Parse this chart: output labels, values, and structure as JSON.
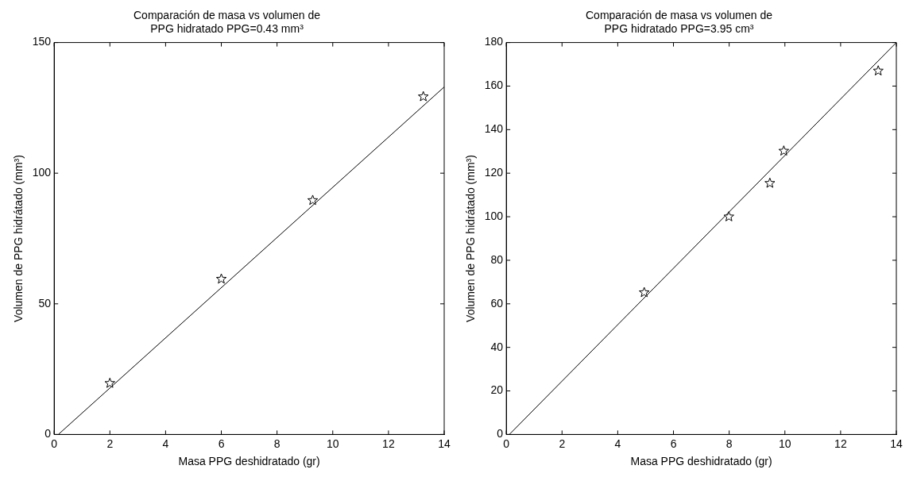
{
  "chart_data": [
    {
      "type": "scatter",
      "title": "Comparación de masa vs volumen de\nPPG hidratado PPG=0.43 mm³",
      "xlabel": "Masa PPG deshidratado (gr)",
      "ylabel": "Volumen de PPG hidrátado (mm³)",
      "xlim": [
        0,
        14
      ],
      "xticks": [
        0,
        2,
        4,
        6,
        8,
        10,
        12,
        14
      ],
      "ylim": [
        0,
        150
      ],
      "yticks": [
        0,
        50,
        100,
        150
      ],
      "grid": false,
      "legend": false,
      "series": [
        {
          "color": "#000000",
          "marker": "star",
          "x": [
            2,
            6,
            9.28,
            13.25
          ],
          "values": [
            19.6,
            59.5,
            89.6,
            129.3
          ]
        },
        {
          "type": "line",
          "color": "#000000",
          "marker": "none",
          "line_style": "solid",
          "x": [
            0.15,
            14
          ],
          "values": [
            0,
            133
          ]
        }
      ]
    },
    {
      "type": "scatter",
      "title": "Comparación de masa vs volumen de\nPPG hidratado PPG=3.95 cm³",
      "xlabel": "Masa PPG deshidratado (gr)",
      "ylabel": "Volumen de PPG hidrátado (mm³)",
      "xlim": [
        0,
        14
      ],
      "xticks": [
        0,
        2,
        4,
        6,
        8,
        10,
        12,
        14
      ],
      "ylim": [
        0,
        180
      ],
      "yticks": [
        0,
        20,
        40,
        60,
        80,
        100,
        120,
        140,
        160,
        180
      ],
      "grid": false,
      "legend": false,
      "series": [
        {
          "color": "#000000",
          "marker": "star",
          "x": [
            4.95,
            7.99,
            9.46,
            9.96,
            13.35
          ],
          "values": [
            65.2,
            100,
            115.4,
            130.2,
            167
          ]
        },
        {
          "type": "line",
          "color": "#000000",
          "marker": "none",
          "line_style": "solid",
          "x": [
            0.11,
            14
          ],
          "values": [
            0,
            180
          ]
        }
      ]
    }
  ]
}
